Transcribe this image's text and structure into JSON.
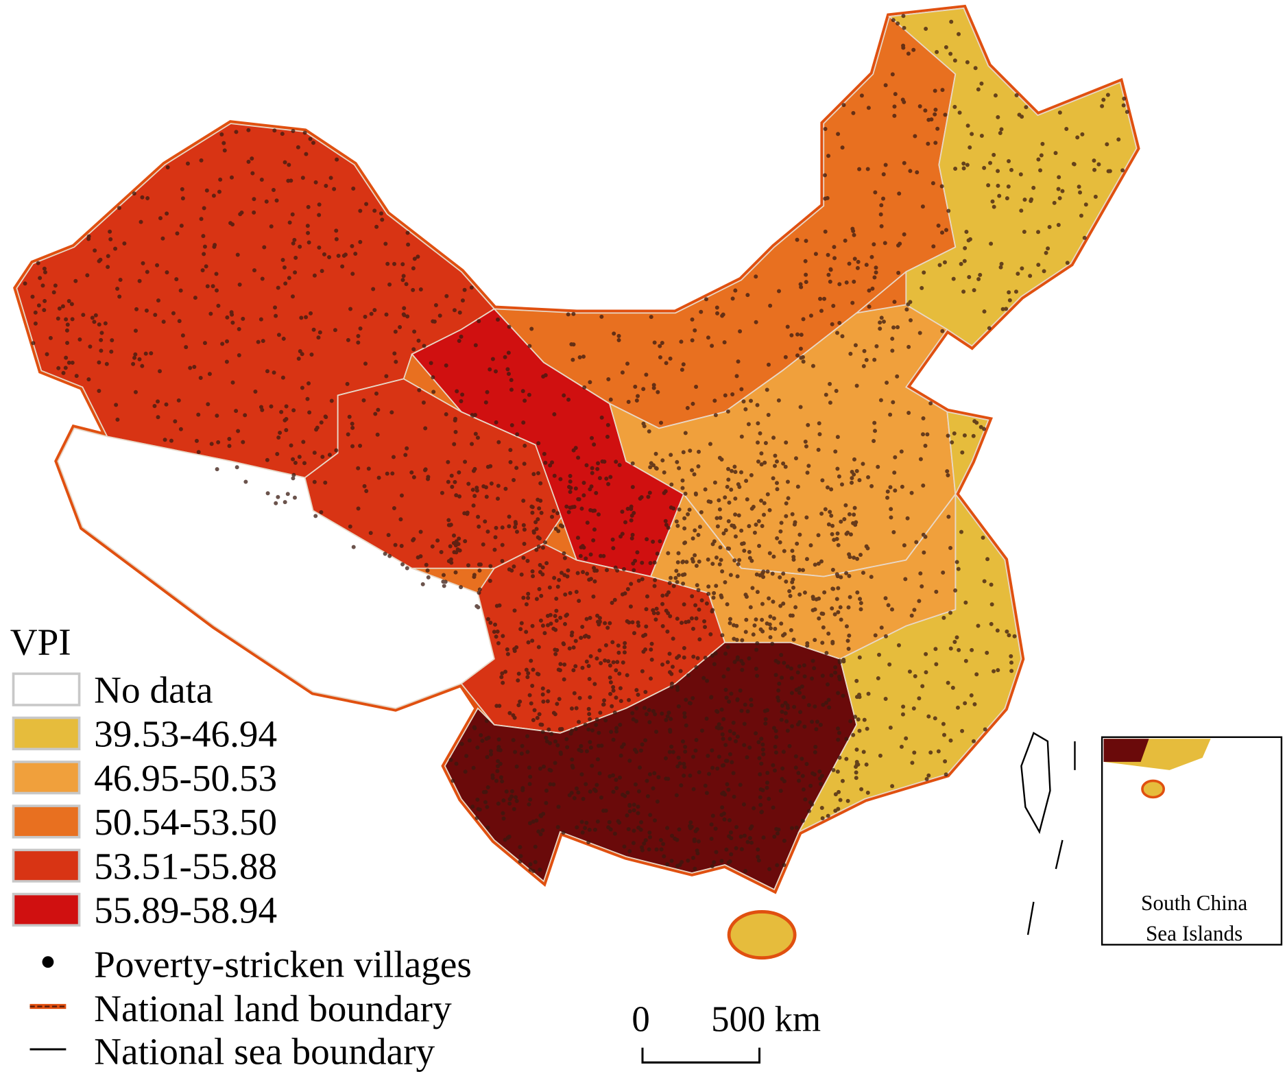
{
  "legend": {
    "title": "VPI",
    "items": [
      {
        "label": "No data",
        "color": "#ffffff"
      },
      {
        "label": "39.53-46.94",
        "color": "#e6bc3c"
      },
      {
        "label": "46.95-50.53",
        "color": "#f0a03c"
      },
      {
        "label": "50.54-53.50",
        "color": "#e87020"
      },
      {
        "label": "53.51-55.88",
        "color": "#d83414"
      },
      {
        "label": "55.89-58.94",
        "color": "#d01010"
      }
    ],
    "points": "Poverty-stricken villages",
    "land_boundary": "National land boundary",
    "sea_boundary": "National sea boundary"
  },
  "scale_bar": {
    "start": "0",
    "end": "500 km"
  },
  "inset": {
    "label_lines": [
      "South China",
      "Sea Islands"
    ]
  }
}
